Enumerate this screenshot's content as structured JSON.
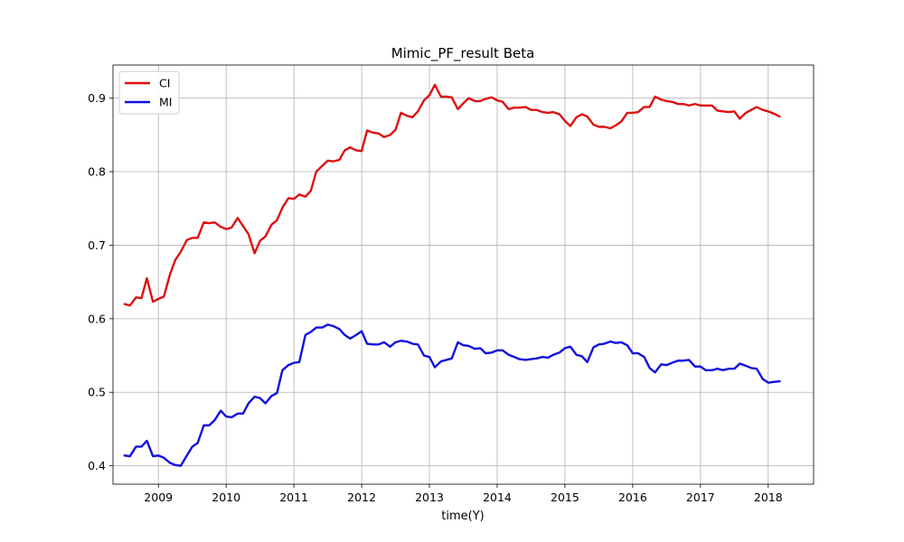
{
  "chart_data": {
    "type": "line",
    "title": "Mimic_PF_result Beta",
    "xlabel": "time(Y)",
    "ylabel": "",
    "xlim": [
      2008.33,
      2018.67
    ],
    "ylim": [
      0.375,
      0.945
    ],
    "x_ticks": [
      2009,
      2010,
      2011,
      2012,
      2013,
      2014,
      2015,
      2016,
      2017,
      2018
    ],
    "x_tick_labels": [
      "2009",
      "2010",
      "2011",
      "2012",
      "2013",
      "2014",
      "2015",
      "2016",
      "2017",
      "2018"
    ],
    "y_ticks": [
      0.4,
      0.5,
      0.6,
      0.7,
      0.8,
      0.9
    ],
    "y_tick_labels": [
      "0.4",
      "0.5",
      "0.6",
      "0.7",
      "0.8",
      "0.9"
    ],
    "grid": true,
    "legend": "top-left",
    "series": [
      {
        "name": "CI",
        "color": "#dd1111",
        "points": [
          [
            2008.5,
            0.62
          ],
          [
            2008.58,
            0.618
          ],
          [
            2008.67,
            0.629
          ],
          [
            2008.75,
            0.628
          ],
          [
            2008.83,
            0.655
          ],
          [
            2008.92,
            0.623
          ],
          [
            2009.0,
            0.627
          ],
          [
            2009.08,
            0.63
          ],
          [
            2009.17,
            0.66
          ],
          [
            2009.25,
            0.68
          ],
          [
            2009.33,
            0.691
          ],
          [
            2009.42,
            0.707
          ],
          [
            2009.5,
            0.71
          ],
          [
            2009.58,
            0.71
          ],
          [
            2009.67,
            0.731
          ],
          [
            2009.75,
            0.73
          ],
          [
            2009.83,
            0.731
          ],
          [
            2009.92,
            0.725
          ],
          [
            2010.0,
            0.722
          ],
          [
            2010.08,
            0.724
          ],
          [
            2010.17,
            0.737
          ],
          [
            2010.25,
            0.726
          ],
          [
            2010.33,
            0.715
          ],
          [
            2010.42,
            0.689
          ],
          [
            2010.5,
            0.706
          ],
          [
            2010.58,
            0.712
          ],
          [
            2010.67,
            0.728
          ],
          [
            2010.75,
            0.734
          ],
          [
            2010.83,
            0.751
          ],
          [
            2010.92,
            0.764
          ],
          [
            2011.0,
            0.763
          ],
          [
            2011.08,
            0.769
          ],
          [
            2011.17,
            0.766
          ],
          [
            2011.25,
            0.774
          ],
          [
            2011.33,
            0.8
          ],
          [
            2011.42,
            0.808
          ],
          [
            2011.5,
            0.815
          ],
          [
            2011.58,
            0.814
          ],
          [
            2011.67,
            0.816
          ],
          [
            2011.75,
            0.829
          ],
          [
            2011.83,
            0.833
          ],
          [
            2011.92,
            0.829
          ],
          [
            2012.0,
            0.828
          ],
          [
            2012.08,
            0.856
          ],
          [
            2012.17,
            0.853
          ],
          [
            2012.25,
            0.852
          ],
          [
            2012.33,
            0.847
          ],
          [
            2012.42,
            0.85
          ],
          [
            2012.5,
            0.857
          ],
          [
            2012.58,
            0.88
          ],
          [
            2012.67,
            0.876
          ],
          [
            2012.75,
            0.874
          ],
          [
            2012.83,
            0.882
          ],
          [
            2012.92,
            0.897
          ],
          [
            2013.0,
            0.904
          ],
          [
            2013.08,
            0.918
          ],
          [
            2013.17,
            0.902
          ],
          [
            2013.25,
            0.902
          ],
          [
            2013.33,
            0.901
          ],
          [
            2013.42,
            0.885
          ],
          [
            2013.5,
            0.893
          ],
          [
            2013.58,
            0.9
          ],
          [
            2013.67,
            0.896
          ],
          [
            2013.75,
            0.896
          ],
          [
            2013.83,
            0.899
          ],
          [
            2013.92,
            0.901
          ],
          [
            2014.0,
            0.897
          ],
          [
            2014.08,
            0.895
          ],
          [
            2014.17,
            0.885
          ],
          [
            2014.25,
            0.887
          ],
          [
            2014.33,
            0.887
          ],
          [
            2014.42,
            0.888
          ],
          [
            2014.5,
            0.884
          ],
          [
            2014.58,
            0.884
          ],
          [
            2014.67,
            0.881
          ],
          [
            2014.75,
            0.88
          ],
          [
            2014.83,
            0.881
          ],
          [
            2014.92,
            0.878
          ],
          [
            2015.0,
            0.869
          ],
          [
            2015.08,
            0.862
          ],
          [
            2015.17,
            0.874
          ],
          [
            2015.25,
            0.878
          ],
          [
            2015.33,
            0.875
          ],
          [
            2015.42,
            0.864
          ],
          [
            2015.5,
            0.861
          ],
          [
            2015.58,
            0.861
          ],
          [
            2015.67,
            0.859
          ],
          [
            2015.75,
            0.863
          ],
          [
            2015.83,
            0.868
          ],
          [
            2015.92,
            0.88
          ],
          [
            2016.0,
            0.88
          ],
          [
            2016.08,
            0.881
          ],
          [
            2016.17,
            0.888
          ],
          [
            2016.25,
            0.888
          ],
          [
            2016.33,
            0.902
          ],
          [
            2016.42,
            0.898
          ],
          [
            2016.5,
            0.896
          ],
          [
            2016.58,
            0.895
          ],
          [
            2016.67,
            0.892
          ],
          [
            2016.75,
            0.892
          ],
          [
            2016.83,
            0.89
          ],
          [
            2016.92,
            0.892
          ],
          [
            2017.0,
            0.89
          ],
          [
            2017.08,
            0.89
          ],
          [
            2017.17,
            0.89
          ],
          [
            2017.25,
            0.883
          ],
          [
            2017.33,
            0.882
          ],
          [
            2017.42,
            0.881
          ],
          [
            2017.5,
            0.882
          ],
          [
            2017.58,
            0.872
          ],
          [
            2017.67,
            0.88
          ],
          [
            2017.75,
            0.884
          ],
          [
            2017.83,
            0.888
          ],
          [
            2017.92,
            0.884
          ],
          [
            2018.0,
            0.882
          ],
          [
            2018.08,
            0.879
          ],
          [
            2018.17,
            0.875
          ]
        ]
      },
      {
        "name": "MI",
        "color": "#1111dd",
        "points": [
          [
            2008.5,
            0.414
          ],
          [
            2008.58,
            0.413
          ],
          [
            2008.67,
            0.426
          ],
          [
            2008.75,
            0.426
          ],
          [
            2008.83,
            0.434
          ],
          [
            2008.92,
            0.413
          ],
          [
            2009.0,
            0.414
          ],
          [
            2009.08,
            0.411
          ],
          [
            2009.17,
            0.404
          ],
          [
            2009.25,
            0.401
          ],
          [
            2009.33,
            0.4
          ],
          [
            2009.42,
            0.414
          ],
          [
            2009.5,
            0.426
          ],
          [
            2009.58,
            0.431
          ],
          [
            2009.67,
            0.455
          ],
          [
            2009.75,
            0.455
          ],
          [
            2009.83,
            0.462
          ],
          [
            2009.92,
            0.475
          ],
          [
            2010.0,
            0.467
          ],
          [
            2010.08,
            0.466
          ],
          [
            2010.17,
            0.471
          ],
          [
            2010.25,
            0.471
          ],
          [
            2010.33,
            0.485
          ],
          [
            2010.42,
            0.494
          ],
          [
            2010.5,
            0.492
          ],
          [
            2010.58,
            0.485
          ],
          [
            2010.67,
            0.495
          ],
          [
            2010.75,
            0.499
          ],
          [
            2010.83,
            0.53
          ],
          [
            2010.92,
            0.537
          ],
          [
            2011.0,
            0.54
          ],
          [
            2011.08,
            0.541
          ],
          [
            2011.17,
            0.578
          ],
          [
            2011.25,
            0.582
          ],
          [
            2011.33,
            0.588
          ],
          [
            2011.42,
            0.588
          ],
          [
            2011.5,
            0.592
          ],
          [
            2011.58,
            0.59
          ],
          [
            2011.67,
            0.586
          ],
          [
            2011.75,
            0.578
          ],
          [
            2011.83,
            0.573
          ],
          [
            2011.92,
            0.578
          ],
          [
            2012.0,
            0.583
          ],
          [
            2012.08,
            0.566
          ],
          [
            2012.17,
            0.565
          ],
          [
            2012.25,
            0.565
          ],
          [
            2012.33,
            0.568
          ],
          [
            2012.42,
            0.562
          ],
          [
            2012.5,
            0.568
          ],
          [
            2012.58,
            0.57
          ],
          [
            2012.67,
            0.569
          ],
          [
            2012.75,
            0.566
          ],
          [
            2012.83,
            0.565
          ],
          [
            2012.92,
            0.55
          ],
          [
            2013.0,
            0.548
          ],
          [
            2013.08,
            0.534
          ],
          [
            2013.17,
            0.542
          ],
          [
            2013.25,
            0.544
          ],
          [
            2013.33,
            0.546
          ],
          [
            2013.42,
            0.568
          ],
          [
            2013.5,
            0.564
          ],
          [
            2013.58,
            0.563
          ],
          [
            2013.67,
            0.559
          ],
          [
            2013.75,
            0.56
          ],
          [
            2013.83,
            0.553
          ],
          [
            2013.92,
            0.554
          ],
          [
            2014.0,
            0.557
          ],
          [
            2014.08,
            0.557
          ],
          [
            2014.17,
            0.551
          ],
          [
            2014.25,
            0.548
          ],
          [
            2014.33,
            0.545
          ],
          [
            2014.42,
            0.544
          ],
          [
            2014.5,
            0.545
          ],
          [
            2014.58,
            0.546
          ],
          [
            2014.67,
            0.548
          ],
          [
            2014.75,
            0.547
          ],
          [
            2014.83,
            0.551
          ],
          [
            2014.92,
            0.554
          ],
          [
            2015.0,
            0.56
          ],
          [
            2015.08,
            0.562
          ],
          [
            2015.17,
            0.551
          ],
          [
            2015.25,
            0.549
          ],
          [
            2015.33,
            0.541
          ],
          [
            2015.42,
            0.561
          ],
          [
            2015.5,
            0.565
          ],
          [
            2015.58,
            0.566
          ],
          [
            2015.67,
            0.569
          ],
          [
            2015.75,
            0.567
          ],
          [
            2015.83,
            0.568
          ],
          [
            2015.92,
            0.564
          ],
          [
            2016.0,
            0.553
          ],
          [
            2016.08,
            0.553
          ],
          [
            2016.17,
            0.548
          ],
          [
            2016.25,
            0.533
          ],
          [
            2016.33,
            0.527
          ],
          [
            2016.42,
            0.538
          ],
          [
            2016.5,
            0.537
          ],
          [
            2016.58,
            0.54
          ],
          [
            2016.67,
            0.543
          ],
          [
            2016.75,
            0.543
          ],
          [
            2016.83,
            0.544
          ],
          [
            2016.92,
            0.535
          ],
          [
            2017.0,
            0.535
          ],
          [
            2017.08,
            0.53
          ],
          [
            2017.17,
            0.53
          ],
          [
            2017.25,
            0.532
          ],
          [
            2017.33,
            0.53
          ],
          [
            2017.42,
            0.532
          ],
          [
            2017.5,
            0.532
          ],
          [
            2017.58,
            0.539
          ],
          [
            2017.67,
            0.536
          ],
          [
            2017.75,
            0.533
          ],
          [
            2017.83,
            0.532
          ],
          [
            2017.92,
            0.518
          ],
          [
            2018.0,
            0.513
          ],
          [
            2018.08,
            0.514
          ],
          [
            2018.17,
            0.515
          ]
        ]
      }
    ]
  }
}
